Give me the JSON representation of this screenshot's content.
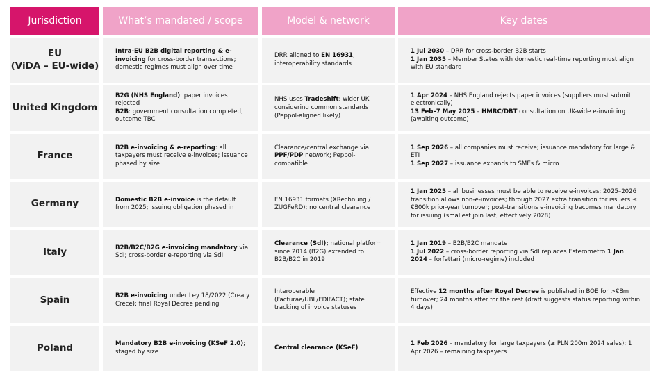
{
  "header": [
    "Jurisdiction",
    "What’s mandated / scope",
    "Model & network",
    "Key dates"
  ],
  "rows": [
    {
      "jurisdiction": [
        "EU",
        "(ViDA – EU-wide)"
      ],
      "scope": [
        [
          {
            "b": "Intra-EU B2B digital reporting & e-invoicing"
          },
          {
            "t": " for cross-border transactions; domestic regimes must align over time"
          }
        ]
      ],
      "model": [
        [
          {
            "t": "DRR aligned to "
          },
          {
            "b": "EN 16931"
          },
          {
            "t": "; interoperability standards"
          }
        ]
      ],
      "dates": [
        [
          {
            "b": "1 Jul 2030"
          },
          {
            "t": " – DRR for cross-border B2B starts"
          }
        ],
        [
          {
            "b": "1 Jan 2035"
          },
          {
            "t": " – Member States with domestic real-time reporting must align with EU standard"
          }
        ]
      ]
    },
    {
      "jurisdiction": [
        "United Kingdom"
      ],
      "scope": [
        [
          {
            "b": "B2G (NHS England)"
          },
          {
            "t": ": paper invoices rejected"
          }
        ],
        [
          {
            "b": "B2B"
          },
          {
            "t": ": government consultation completed, outcome TBC"
          }
        ]
      ],
      "model": [
        [
          {
            "t": "NHS uses "
          },
          {
            "b": "Tradeshift"
          },
          {
            "t": "; wider UK considering common standards (Peppol-aligned likely)"
          }
        ]
      ],
      "dates": [
        [
          {
            "b": "1 Apr 2024"
          },
          {
            "t": " – NHS England rejects paper invoices (suppliers must submit electronically)"
          }
        ],
        [
          {
            "b": "13 Feb–7 May 2025"
          },
          {
            "t": " – "
          },
          {
            "b": "HMRC/DBT"
          },
          {
            "t": " consultation on UK-wide e-invoicing (awaiting outcome)"
          }
        ]
      ]
    },
    {
      "jurisdiction": [
        "France"
      ],
      "scope": [
        [
          {
            "b": "B2B e-invoicing & e-reporting"
          },
          {
            "t": ": all taxpayers must receive e-invoices; issuance phased by size"
          }
        ]
      ],
      "model": [
        [
          {
            "t": "Clearance/central exchange via "
          },
          {
            "b": "PPF/PDP"
          },
          {
            "t": " network; Peppol-compatible"
          }
        ]
      ],
      "dates": [
        [
          {
            "b": "1 Sep 2026"
          },
          {
            "t": " – all companies must receive; issuance mandatory for large & ETI"
          }
        ],
        [
          {
            "b": "1 Sep 2027"
          },
          {
            "t": " – issuance expands to SMEs & micro"
          }
        ]
      ]
    },
    {
      "jurisdiction": [
        "Germany"
      ],
      "scope": [
        [
          {
            "b": "Domestic B2B e-invoice"
          },
          {
            "t": " is the default from 2025; issuing obligation phased in"
          }
        ]
      ],
      "model": [
        [
          {
            "t": "EN 16931 formats (XRechnung / ZUGFeRD); no central clearance"
          }
        ]
      ],
      "dates": [
        [
          {
            "b": "1 Jan 2025"
          },
          {
            "t": " – all businesses must be able to receive e-invoices; 2025–2026 transition allows non-e-invoices; through 2027 extra transition for issuers ≤ €800k prior-year turnover; post-transitions e-invoicing becomes mandatory for issuing (smallest join last, effectively 2028)"
          }
        ]
      ]
    },
    {
      "jurisdiction": [
        "Italy"
      ],
      "scope": [
        [
          {
            "b": "B2B/B2C/B2G e-invoicing mandatory"
          },
          {
            "t": " via SdI; cross-border e-reporting via SdI"
          }
        ]
      ],
      "model": [
        [
          {
            "b": "Clearance (SdI);"
          },
          {
            "t": " national platform since 2014 (B2G) extended to B2B/B2C in 2019"
          }
        ]
      ],
      "dates": [
        [
          {
            "b": "1 Jan 2019"
          },
          {
            "t": " – B2B/B2C mandate"
          }
        ],
        [
          {
            "b": "1 Jul 2022"
          },
          {
            "t": " – cross-border reporting via SdI replaces Esterometro "
          },
          {
            "b": "1 Jan 2024"
          },
          {
            "t": " – forfettari (micro-regime) included"
          }
        ]
      ]
    },
    {
      "jurisdiction": [
        "Spain"
      ],
      "scope": [
        [
          {
            "b": "B2B e-invoicing"
          },
          {
            "t": " under Ley 18/2022 (Crea y Crece); final Royal Decree pending"
          }
        ]
      ],
      "model": [
        [
          {
            "t": "Interoperable (Facturae/UBL/EDIFACT); state tracking of invoice statuses"
          }
        ]
      ],
      "dates": [
        [
          {
            "t": "Effective "
          },
          {
            "b": "12 months after Royal Decree"
          },
          {
            "t": " is published in BOE for >€8m turnover; 24 months after for the rest (draft suggests status reporting within 4 days)"
          }
        ]
      ]
    },
    {
      "jurisdiction": [
        "Poland"
      ],
      "scope": [
        [
          {
            "b": "Mandatory B2B e-invoicing (KSeF 2.0)"
          },
          {
            "t": "; staged by size"
          }
        ]
      ],
      "model": [
        [
          {
            "b": "Central clearance (KSeF)"
          }
        ]
      ],
      "dates": [
        [
          {
            "b": "1 Feb 2026"
          },
          {
            "t": " – mandatory for large taxpayers (≥ PLN 200m 2024 sales); 1 Apr 2026 – remaining taxpayers"
          }
        ]
      ]
    }
  ]
}
